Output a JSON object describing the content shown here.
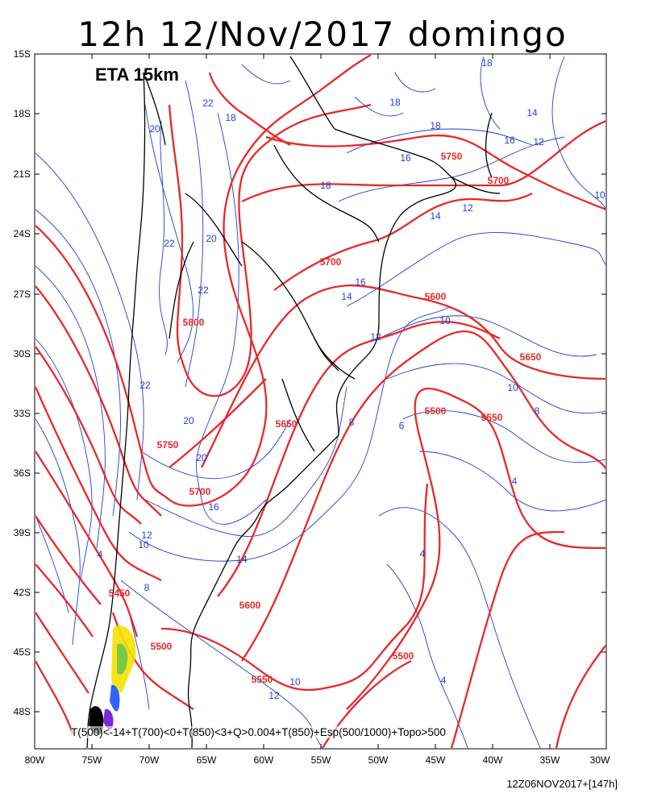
{
  "title": "12h 12/Nov/2017 domingo",
  "model_label": "ETA 15km",
  "formula": "T(500)<-14+T(700)<0+T(850)<3+Q>0.004+T(850)+Esp(500/1000)+Topo>500",
  "run_info": "12Z06NOV2017+[147h]",
  "colors": {
    "thickness": "#e8282a",
    "temperature": "#1f3fd6",
    "coast": "#000000"
  },
  "lat_labels": [
    "15S",
    "18S",
    "21S",
    "24S",
    "27S",
    "30S",
    "33S",
    "36S",
    "39S",
    "42S",
    "45S",
    "48S"
  ],
  "lon_labels": [
    "80W",
    "75W",
    "70W",
    "65W",
    "60W",
    "55W",
    "50W",
    "45W",
    "40W",
    "35W",
    "30W"
  ],
  "thickness_labels": [
    "5750",
    "5700",
    "5700",
    "5800",
    "5600",
    "5650",
    "5500",
    "5550",
    "5650",
    "5750",
    "5700",
    "5450",
    "5600",
    "5500",
    "5550",
    "5500"
  ],
  "temperature_labels": [
    "18",
    "18",
    "18",
    "14",
    "16",
    "12",
    "10",
    "16",
    "18",
    "14",
    "12",
    "16",
    "14",
    "12",
    "10",
    "8",
    "6",
    "4",
    "4",
    "22",
    "20",
    "22",
    "20",
    "22",
    "20",
    "16",
    "14",
    "12",
    "10",
    "8",
    "4",
    "10",
    "12",
    "10",
    "4",
    "8",
    "20",
    "22",
    "18"
  ]
}
